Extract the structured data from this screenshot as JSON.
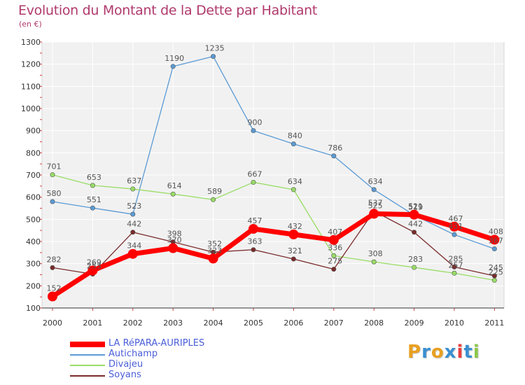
{
  "title": "Evolution du Montant de la Dette par Habitant",
  "subtitle": "(en €)",
  "logo": {
    "letters": [
      "P",
      "r",
      "o",
      "x",
      "i",
      "t",
      "i"
    ],
    "colors": [
      "#e8a020",
      "#3a8fd0",
      "#e8a020",
      "#3a8fd0",
      "#e84040",
      "#3a8fd0",
      "#8cc84a"
    ]
  },
  "chart_data": {
    "type": "line",
    "categories": [
      "2000",
      "2001",
      "2002",
      "2003",
      "2004",
      "2005",
      "2006",
      "2007",
      "2008",
      "2009",
      "2010",
      "2011"
    ],
    "ylim": [
      100,
      1300
    ],
    "yticks": [
      "100",
      "200",
      "300",
      "400",
      "500",
      "600",
      "700",
      "800",
      "900",
      "1000",
      "1100",
      "1200",
      "1300"
    ],
    "grid": true,
    "legend_position": "bottom-left",
    "series": [
      {
        "name": "LA RéPARA-AURIPLES",
        "color": "#ff0000",
        "values": [
          152,
          269,
          344,
          370,
          323,
          457,
          432,
          407,
          525,
          521,
          467,
          408
        ],
        "labels": [
          "152",
          "269",
          "344",
          "370",
          "323",
          "457",
          "432",
          "407",
          "525",
          "521",
          "467",
          "408"
        ],
        "bold": true
      },
      {
        "name": "Autichamp",
        "color": "#5b9bd5",
        "values": [
          580,
          551,
          523,
          1190,
          1235,
          900,
          840,
          786,
          634,
          519,
          431,
          367
        ],
        "labels": [
          "580",
          "551",
          "523",
          "1190",
          "1235",
          "900",
          "840",
          "786",
          "634",
          "519",
          "431",
          "367"
        ],
        "gap_after": 2
      },
      {
        "name": "Divajeu",
        "color": "#99dd66",
        "values": [
          701,
          653,
          637,
          614,
          589,
          667,
          634,
          336,
          308,
          283,
          257,
          225
        ],
        "labels": [
          "701",
          "653",
          "637",
          "614",
          "589",
          "667",
          "634",
          "336",
          "308",
          "283",
          "257",
          "225"
        ]
      },
      {
        "name": "Soyans",
        "color": "#7a2a2a",
        "values": [
          282,
          253,
          442,
          398,
          352,
          363,
          321,
          275,
          537,
          442,
          285,
          245
        ],
        "labels": [
          "282",
          "253",
          "442",
          "398",
          "352",
          "363",
          "321",
          "275",
          "537",
          "442",
          "285",
          "245"
        ]
      }
    ]
  }
}
